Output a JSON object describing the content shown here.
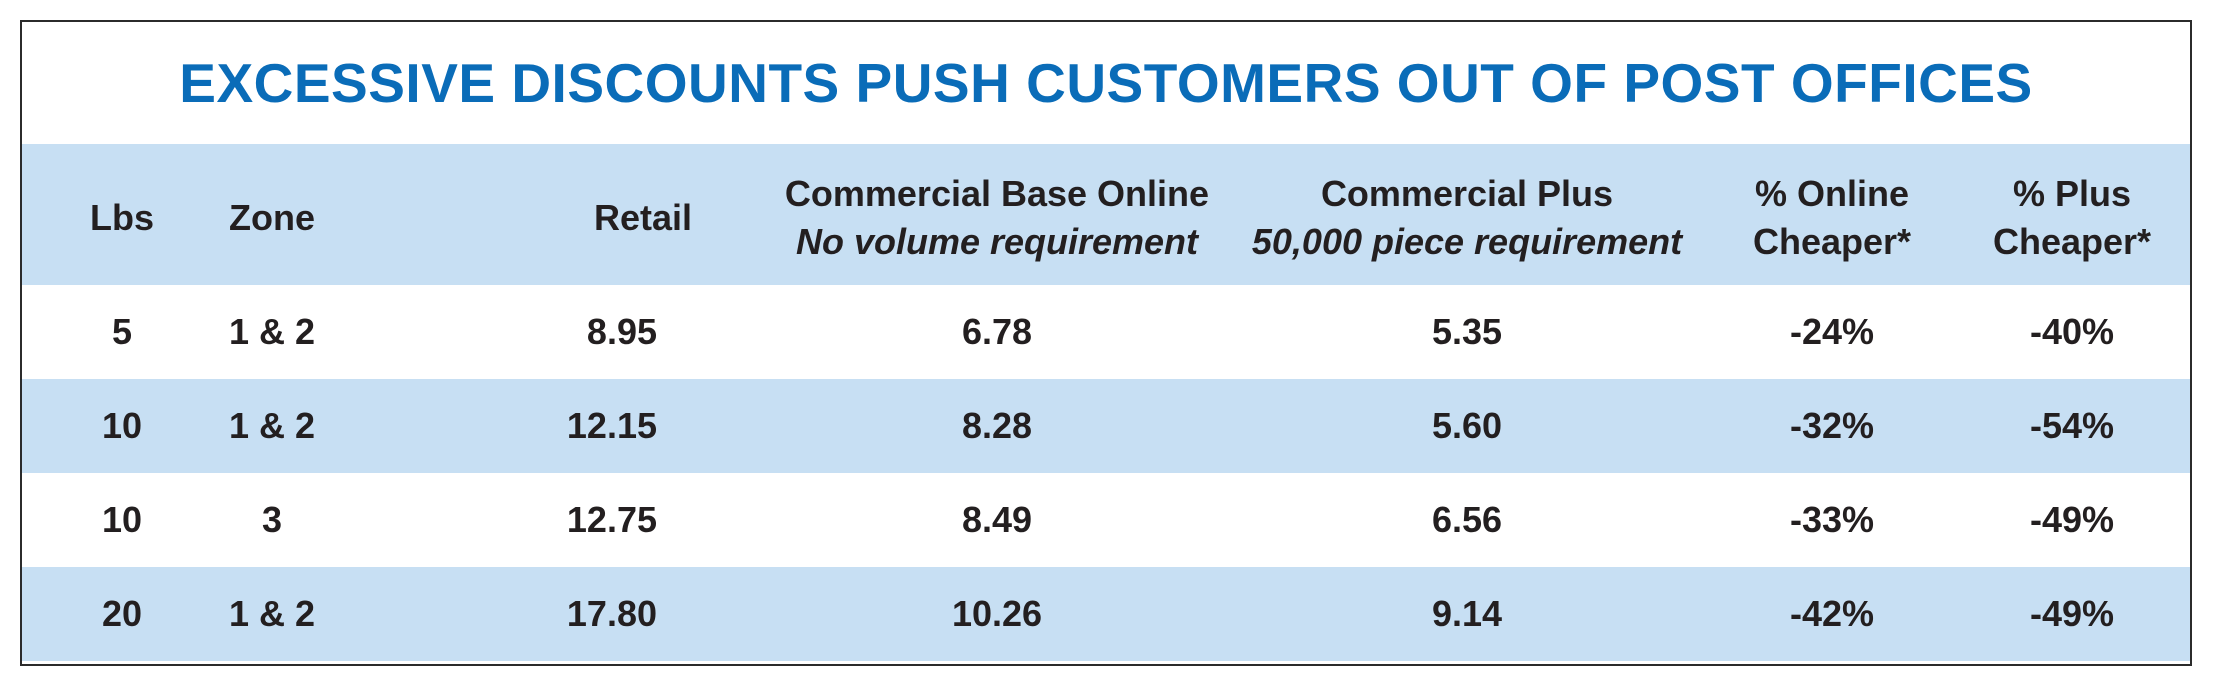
{
  "chart_data": {
    "type": "table",
    "title": "EXCESSIVE DISCOUNTS PUSH CUSTOMERS OUT OF POST OFFICES",
    "columns": [
      {
        "key": "lbs",
        "label": "Lbs",
        "sublabel": ""
      },
      {
        "key": "zone",
        "label": "Zone",
        "sublabel": ""
      },
      {
        "key": "retail",
        "label": "Retail",
        "sublabel": ""
      },
      {
        "key": "base",
        "label": "Commercial Base Online",
        "sublabel": "No volume requirement"
      },
      {
        "key": "plus",
        "label": "Commercial Plus",
        "sublabel": "50,000 piece requirement"
      },
      {
        "key": "pct_online",
        "label": "% Online",
        "label2": "Cheaper*"
      },
      {
        "key": "pct_plus",
        "label": "% Plus",
        "label2": "Cheaper*"
      }
    ],
    "rows": [
      {
        "lbs": "5",
        "zone": "1 & 2",
        "retail": "8.95",
        "base": "6.78",
        "plus": "5.35",
        "pct_online": "-24%",
        "pct_plus": "-40%"
      },
      {
        "lbs": "10",
        "zone": "1 & 2",
        "retail": "12.15",
        "base": "8.28",
        "plus": "5.60",
        "pct_online": "-32%",
        "pct_plus": "-54%"
      },
      {
        "lbs": "10",
        "zone": "3",
        "retail": "12.75",
        "base": "8.49",
        "plus": "6.56",
        "pct_online": "-33%",
        "pct_plus": "-49%"
      },
      {
        "lbs": "20",
        "zone": "1 & 2",
        "retail": "17.80",
        "base": "10.26",
        "plus": "9.14",
        "pct_online": "-42%",
        "pct_plus": "-49%"
      }
    ]
  },
  "colors": {
    "title": "#0a6cb8",
    "header_band": "#c7dff3",
    "text": "#231f20",
    "border": "#2b2b2b"
  }
}
